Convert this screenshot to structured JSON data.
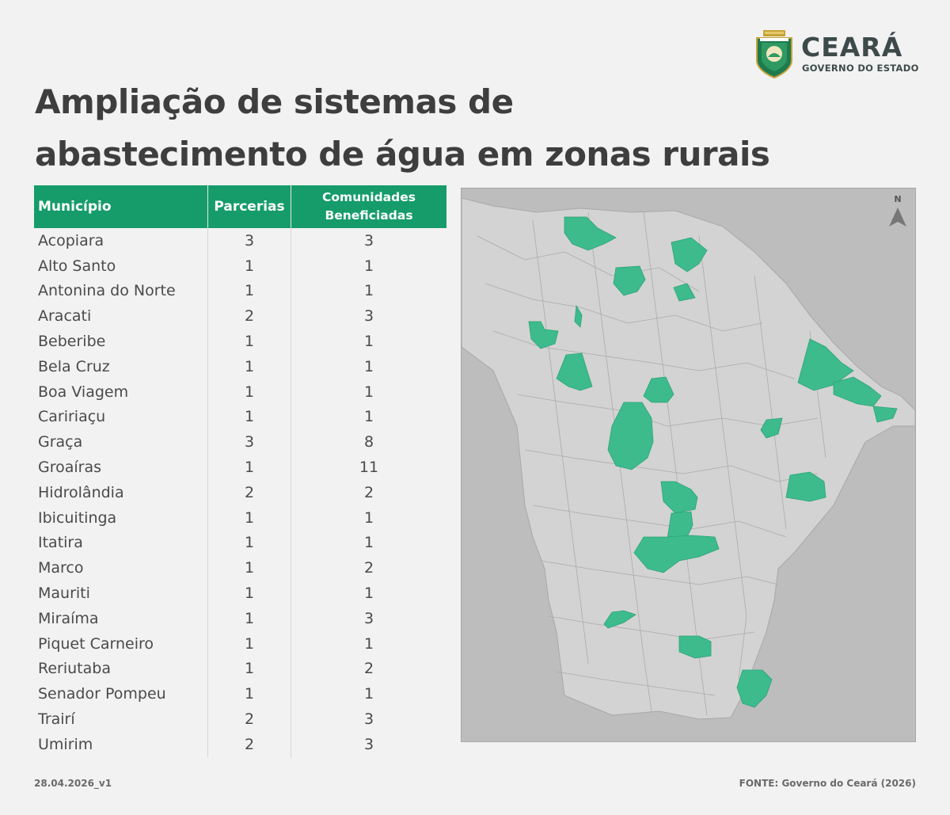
{
  "header": {
    "title_line1": "Ampliação de sistemas de",
    "title_line2": "abastecimento de água em zonas rurais"
  },
  "logo": {
    "name": "CEARÁ",
    "subtitle": "GOVERNO DO ESTADO"
  },
  "table": {
    "columns": [
      "Município",
      "Parcerias",
      "Comunidades",
      "Beneficiadas"
    ],
    "rows": [
      {
        "municipio": "Acopiara",
        "parcerias": "3",
        "comunidades": "3"
      },
      {
        "municipio": "Alto Santo",
        "parcerias": "1",
        "comunidades": "1"
      },
      {
        "municipio": "Antonina do Norte",
        "parcerias": "1",
        "comunidades": "1"
      },
      {
        "municipio": "Aracati",
        "parcerias": "2",
        "comunidades": "3"
      },
      {
        "municipio": "Beberibe",
        "parcerias": "1",
        "comunidades": "1"
      },
      {
        "municipio": "Bela Cruz",
        "parcerias": "1",
        "comunidades": "1"
      },
      {
        "municipio": "Boa Viagem",
        "parcerias": "1",
        "comunidades": "1"
      },
      {
        "municipio": "Caririaçu",
        "parcerias": "1",
        "comunidades": "1"
      },
      {
        "municipio": "Graça",
        "parcerias": "3",
        "comunidades": "8"
      },
      {
        "municipio": "Groaíras",
        "parcerias": "1",
        "comunidades": "11"
      },
      {
        "municipio": "Hidrolândia",
        "parcerias": "2",
        "comunidades": "2"
      },
      {
        "municipio": "Ibicuitinga",
        "parcerias": "1",
        "comunidades": "1"
      },
      {
        "municipio": "Itatira",
        "parcerias": "1",
        "comunidades": "1"
      },
      {
        "municipio": "Marco",
        "parcerias": "1",
        "comunidades": "2"
      },
      {
        "municipio": "Mauriti",
        "parcerias": "1",
        "comunidades": "1"
      },
      {
        "municipio": "Miraíma",
        "parcerias": "1",
        "comunidades": "3"
      },
      {
        "municipio": "Piquet Carneiro",
        "parcerias": "1",
        "comunidades": "1"
      },
      {
        "municipio": "Reriutaba",
        "parcerias": "1",
        "comunidades": "2"
      },
      {
        "municipio": "Senador Pompeu",
        "parcerias": "1",
        "comunidades": "1"
      },
      {
        "municipio": "Trairí",
        "parcerias": "2",
        "comunidades": "3"
      },
      {
        "municipio": "Umirim",
        "parcerias": "2",
        "comunidades": "3"
      }
    ]
  },
  "map": {
    "north_label": "N",
    "colors": {
      "highlight": "#3dbb8c",
      "state": "#d3d3d3",
      "outside": "#bdbdbd",
      "border": "#a8a8a8"
    }
  },
  "footer": {
    "version": "28.04.2026_v1",
    "source": "FONTE: Governo do Ceará (2026)"
  }
}
